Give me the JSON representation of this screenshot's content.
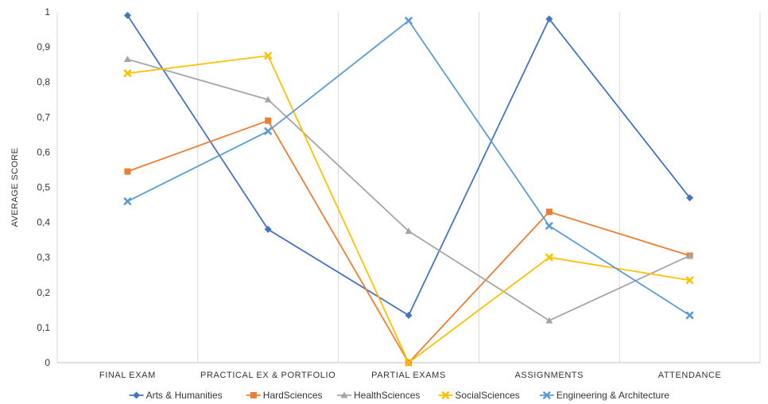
{
  "chart_data": {
    "type": "line",
    "title": "",
    "xlabel": "",
    "ylabel": "AVERAGE SCORE",
    "categories": [
      "FINAL EXAM",
      "PRACTICAL EX & PORTFOLIO",
      "PARTIAL EXAMS",
      "ASSIGNMENTS",
      "ATTENDANCE"
    ],
    "ylim": [
      0,
      1
    ],
    "yticks": [
      "0",
      "0,1",
      "0,2",
      "0,3",
      "0,4",
      "0,5",
      "0,6",
      "0,7",
      "0,8",
      "0,9",
      "1"
    ],
    "grid": "vertical category separators",
    "legend_position": "bottom",
    "series": [
      {
        "name": "Arts & Humanities",
        "color": "#4472c4",
        "marker": "diamond",
        "values": [
          0.99,
          0.38,
          0.135,
          0.98,
          0.47
        ]
      },
      {
        "name": "HardSciences",
        "color": "#ed7d31",
        "marker": "square",
        "values": [
          0.545,
          0.69,
          0.0,
          0.43,
          0.305
        ]
      },
      {
        "name": "HealthSciences",
        "color": "#a5a5a5",
        "marker": "triangle",
        "values": [
          0.865,
          0.75,
          0.375,
          0.12,
          0.305
        ]
      },
      {
        "name": "SocialSciences",
        "color": "#ffc000",
        "marker": "x",
        "values": [
          0.825,
          0.875,
          0.0,
          0.3,
          0.235
        ]
      },
      {
        "name": "Engineering & Architecture",
        "color": "#5b9bd5",
        "marker": "x",
        "values": [
          0.46,
          0.66,
          0.975,
          0.39,
          0.135
        ]
      }
    ]
  }
}
